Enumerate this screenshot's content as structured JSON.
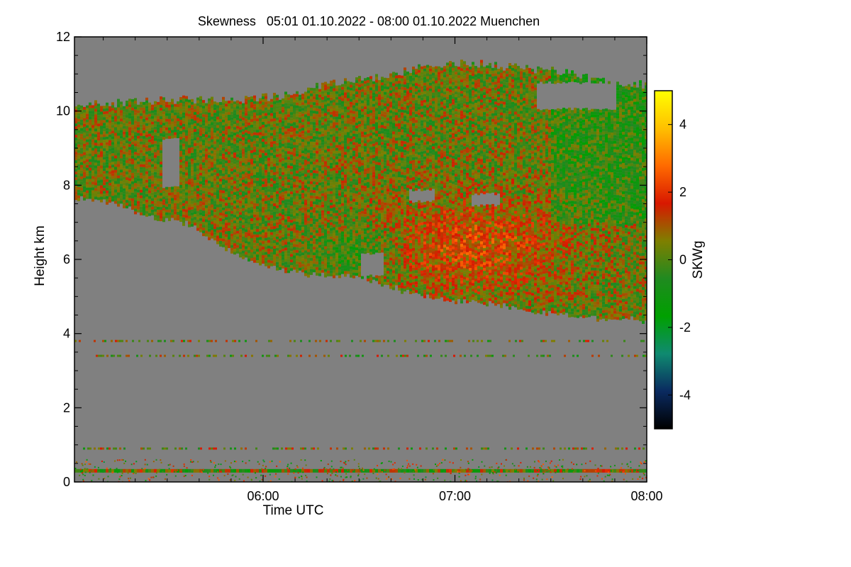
{
  "chart_data": {
    "type": "heatmap",
    "title": "Skewness   05:01 01.10.2022 - 08:00 01.10.2022 Muenchen",
    "xlabel": "Time UTC",
    "ylabel": "Height km",
    "x_range": [
      "05:01",
      "08:00"
    ],
    "xlim_minutes_utc": [
      301,
      480
    ],
    "x_ticks": [
      {
        "label": "06:00",
        "minute": 360
      },
      {
        "label": "07:00",
        "minute": 420
      },
      {
        "label": "08:00",
        "minute": 480
      }
    ],
    "ylim": [
      0,
      12
    ],
    "y_ticks": [
      0,
      2,
      4,
      6,
      8,
      10,
      12
    ],
    "colorbar": {
      "label": "SKWg",
      "range": [
        -5,
        5
      ],
      "ticks": [
        -4,
        -2,
        0,
        2,
        4
      ],
      "colors": [
        "#000000",
        "#0a2a60",
        "#0f8a70",
        "#00a000",
        "#208a20",
        "#7f7f00",
        "#d81800",
        "#ff6a00",
        "#ffc000",
        "#ffff00"
      ]
    },
    "background_color": "#808080",
    "cloud_layer": {
      "top_km": [
        [
          301,
          10.1
        ],
        [
          310,
          10.2
        ],
        [
          330,
          10.3
        ],
        [
          350,
          10.3
        ],
        [
          365,
          10.4
        ],
        [
          382,
          10.8
        ],
        [
          395,
          10.9
        ],
        [
          410,
          11.2
        ],
        [
          422,
          11.3
        ],
        [
          450,
          11.1
        ],
        [
          465,
          10.8
        ],
        [
          480,
          10.7
        ]
      ],
      "base_km": [
        [
          301,
          7.7
        ],
        [
          312,
          7.6
        ],
        [
          320,
          7.3
        ],
        [
          328,
          7.1
        ],
        [
          336,
          7.0
        ],
        [
          343,
          6.6
        ],
        [
          348,
          6.3
        ],
        [
          358,
          5.9
        ],
        [
          368,
          5.7
        ],
        [
          380,
          5.6
        ],
        [
          392,
          5.5
        ],
        [
          400,
          5.3
        ],
        [
          410,
          5.0
        ],
        [
          425,
          4.9
        ],
        [
          440,
          4.7
        ],
        [
          455,
          4.5
        ],
        [
          470,
          4.4
        ],
        [
          480,
          4.4
        ]
      ]
    },
    "clear_gaps_in_cloud": [
      {
        "minute_range": [
          328,
          333
        ],
        "km_range": [
          8.0,
          9.3
        ]
      },
      {
        "minute_range": [
          390,
          397
        ],
        "km_range": [
          5.6,
          6.2
        ]
      },
      {
        "minute_range": [
          405,
          413
        ],
        "km_range": [
          7.6,
          7.9
        ]
      },
      {
        "minute_range": [
          425,
          434
        ],
        "km_range": [
          7.5,
          7.8
        ]
      },
      {
        "minute_range": [
          445,
          470
        ],
        "km_range": [
          10.1,
          10.8
        ]
      }
    ],
    "sparse_echo_rows_km": [
      0.3,
      0.9,
      3.4,
      3.8
    ],
    "strong_lowest_band_km": 0.3
  }
}
